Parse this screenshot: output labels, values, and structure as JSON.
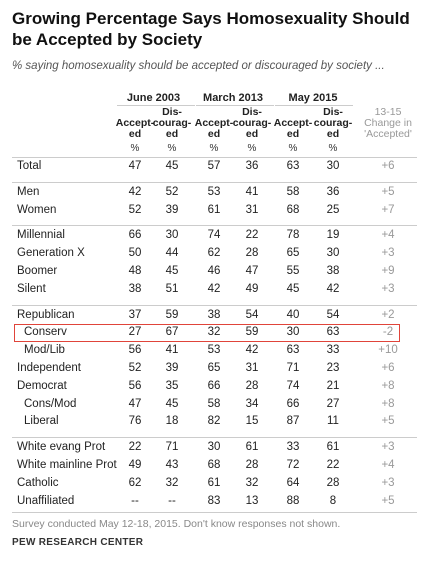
{
  "header": {
    "title": "Growing Percentage Says Homosexuality Should be Accepted by Society",
    "subtitle": "% saying homosexuality should be accepted or discouraged by society ..."
  },
  "table": {
    "groups": [
      "June 2003",
      "March 2013",
      "May 2015"
    ],
    "column_headers": [
      [
        "Accept-",
        "ed"
      ],
      [
        "Dis-",
        "courag-",
        "ed"
      ]
    ],
    "change_header": [
      "13-15",
      "Change in",
      "'Accepted'"
    ],
    "unit": "%",
    "rows": [
      {
        "label": "Total",
        "values": [
          47,
          45,
          57,
          36,
          63,
          30,
          "+6"
        ]
      },
      {
        "label": "Men",
        "values": [
          42,
          52,
          53,
          41,
          58,
          36,
          "+5"
        ]
      },
      {
        "label": "Women",
        "values": [
          52,
          39,
          61,
          31,
          68,
          25,
          "+7"
        ]
      },
      {
        "label": "Millennial",
        "values": [
          66,
          30,
          74,
          22,
          78,
          19,
          "+4"
        ]
      },
      {
        "label": "Generation X",
        "values": [
          50,
          44,
          62,
          28,
          65,
          30,
          "+3"
        ]
      },
      {
        "label": "Boomer",
        "values": [
          48,
          45,
          46,
          47,
          55,
          38,
          "+9"
        ]
      },
      {
        "label": "Silent",
        "values": [
          38,
          51,
          42,
          49,
          45,
          42,
          "+3"
        ]
      },
      {
        "label": "Republican",
        "values": [
          37,
          59,
          38,
          54,
          40,
          54,
          "+2"
        ]
      },
      {
        "label": "Conserv",
        "values": [
          27,
          67,
          32,
          59,
          30,
          63,
          "-2"
        ]
      },
      {
        "label": "Mod/Lib",
        "values": [
          56,
          41,
          53,
          42,
          63,
          33,
          "+10"
        ]
      },
      {
        "label": "Independent",
        "values": [
          52,
          39,
          65,
          31,
          71,
          23,
          "+6"
        ]
      },
      {
        "label": "Democrat",
        "values": [
          56,
          35,
          66,
          28,
          74,
          21,
          "+8"
        ]
      },
      {
        "label": "Cons/Mod",
        "values": [
          47,
          45,
          58,
          34,
          66,
          27,
          "+8"
        ]
      },
      {
        "label": "Liberal",
        "values": [
          76,
          18,
          82,
          15,
          87,
          11,
          "+5"
        ]
      },
      {
        "label": "White evang Prot",
        "values": [
          22,
          71,
          30,
          61,
          33,
          61,
          "+3"
        ]
      },
      {
        "label": "White mainline Prot",
        "values": [
          49,
          43,
          68,
          28,
          72,
          22,
          "+4"
        ]
      },
      {
        "label": "Catholic",
        "values": [
          62,
          32,
          61,
          32,
          64,
          28,
          "+3"
        ]
      },
      {
        "label": "Unaffiliated",
        "values": [
          "--",
          "--",
          83,
          13,
          88,
          8,
          "+5"
        ]
      }
    ]
  },
  "footer": {
    "note": "Survey conducted May 12-18, 2015. Don't know responses not shown.",
    "source": "PEW RESEARCH CENTER"
  }
}
